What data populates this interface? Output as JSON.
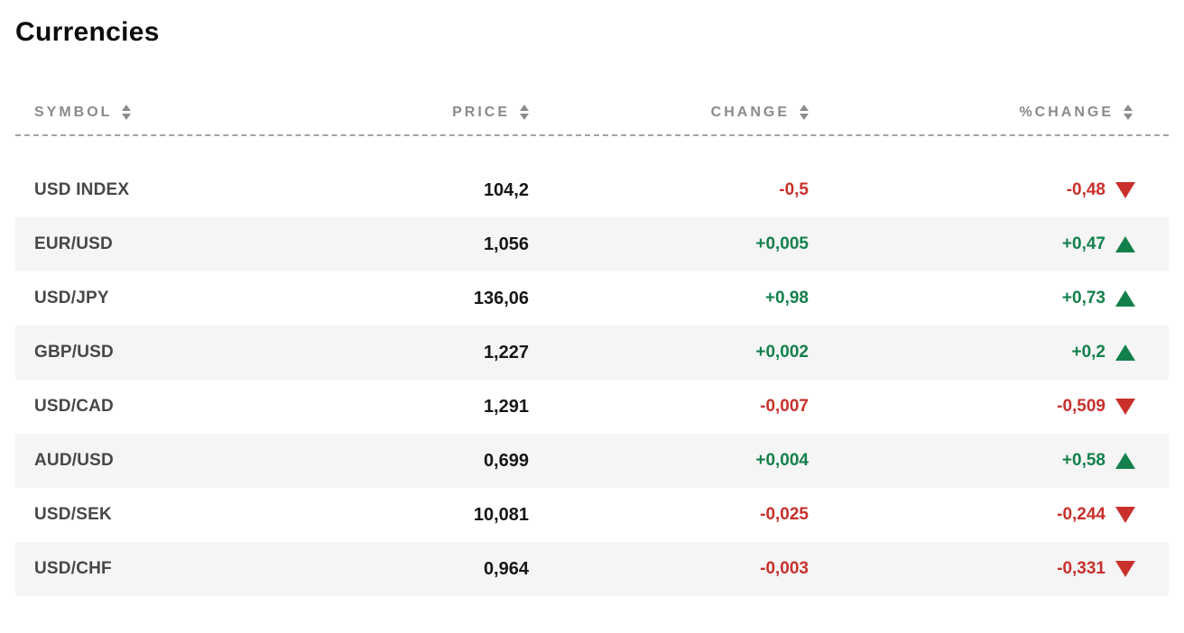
{
  "title": "Currencies",
  "table": {
    "columns": [
      {
        "label": "SYMBOL",
        "sort_icon": "sort-arrows-icon"
      },
      {
        "label": "PRICE",
        "sort_icon": "sort-arrows-icon"
      },
      {
        "label": "CHANGE",
        "sort_icon": "sort-arrows-icon"
      },
      {
        "label": "%CHANGE",
        "sort_icon": "sort-arrows-icon"
      }
    ],
    "rows": [
      {
        "symbol": "USD INDEX",
        "price": "104,2",
        "change": "-0,5",
        "pct_change": "-0,48",
        "direction": "down"
      },
      {
        "symbol": "EUR/USD",
        "price": "1,056",
        "change": "+0,005",
        "pct_change": "+0,47",
        "direction": "up"
      },
      {
        "symbol": "USD/JPY",
        "price": "136,06",
        "change": "+0,98",
        "pct_change": "+0,73",
        "direction": "up"
      },
      {
        "symbol": "GBP/USD",
        "price": "1,227",
        "change": "+0,002",
        "pct_change": "+0,2",
        "direction": "up"
      },
      {
        "symbol": "USD/CAD",
        "price": "1,291",
        "change": "-0,007",
        "pct_change": "-0,509",
        "direction": "down"
      },
      {
        "symbol": "AUD/USD",
        "price": "0,699",
        "change": "+0,004",
        "pct_change": "+0,58",
        "direction": "up"
      },
      {
        "symbol": "USD/SEK",
        "price": "10,081",
        "change": "-0,025",
        "pct_change": "-0,244",
        "direction": "down"
      },
      {
        "symbol": "USD/CHF",
        "price": "0,964",
        "change": "-0,003",
        "pct_change": "-0,331",
        "direction": "down"
      }
    ]
  },
  "colors": {
    "positive": "#13804b",
    "negative": "#c9302c",
    "header_text": "#8a8a8a",
    "symbol_text": "#474747",
    "price_text": "#161616",
    "row_alt_bg": "#f5f5f5",
    "dashed_divider": "#a3a3a3"
  }
}
